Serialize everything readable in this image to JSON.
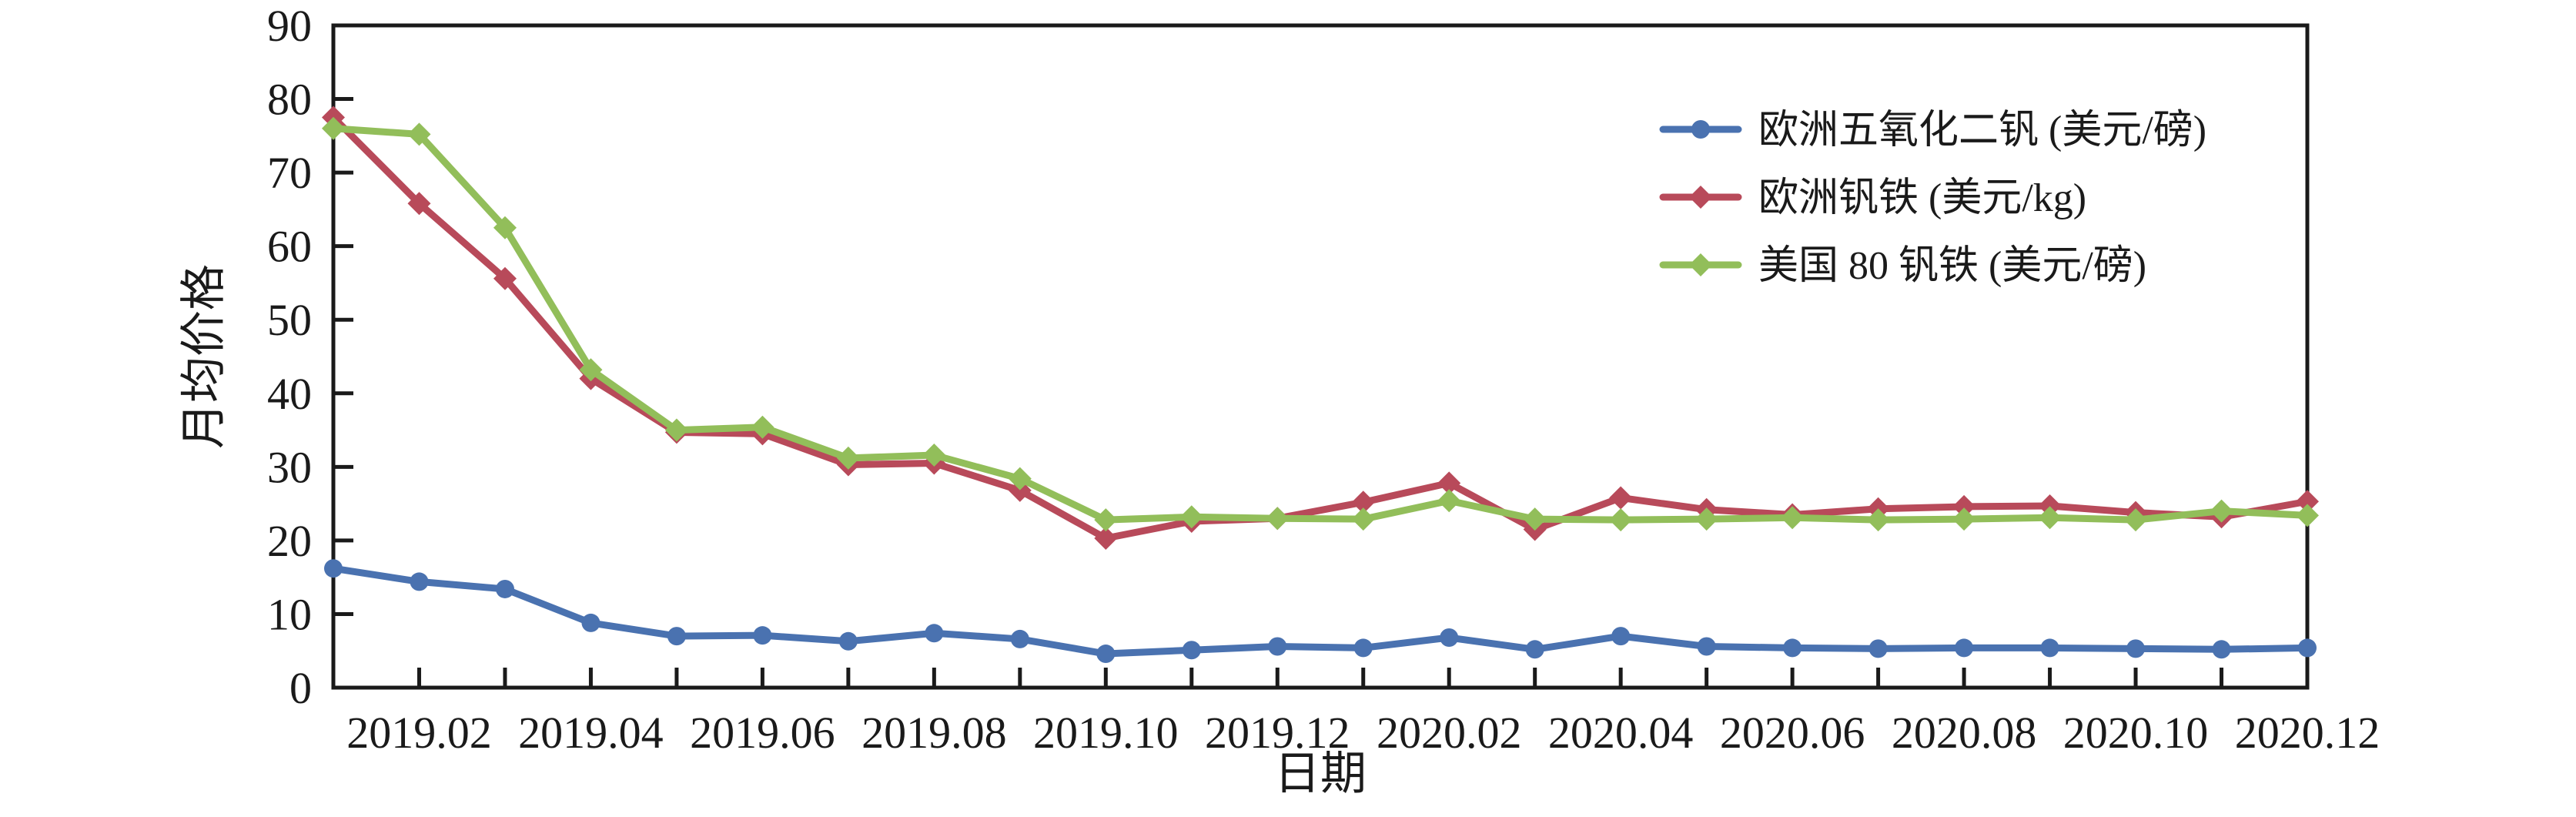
{
  "chart_data": {
    "type": "line",
    "title": "",
    "xlabel": "日期",
    "ylabel": "月均价格",
    "ylim": [
      0,
      90
    ],
    "ytick_step": 10,
    "ytick_labels": [
      "0",
      "10",
      "20",
      "30",
      "40",
      "50",
      "60",
      "70",
      "80",
      "90"
    ],
    "grid": false,
    "legend_position": "upper right",
    "x": [
      "2019.01",
      "2019.02",
      "2019.03",
      "2019.04",
      "2019.05",
      "2019.06",
      "2019.07",
      "2019.08",
      "2019.09",
      "2019.10",
      "2019.11",
      "2019.12",
      "2020.01",
      "2020.02",
      "2020.03",
      "2020.04",
      "2020.05",
      "2020.06",
      "2020.07",
      "2020.08",
      "2020.09",
      "2020.10",
      "2020.11",
      "2020.12"
    ],
    "x_tick_labels_shown": [
      "2019.02",
      "2019.04",
      "2019.06",
      "2019.08",
      "2019.10",
      "2019.12",
      "2020.02",
      "2020.04",
      "2020.06",
      "2020.08",
      "2020.10",
      "2020.12"
    ],
    "series": [
      {
        "name": "欧洲五氧化二钒 (美元/磅)",
        "color": "#4a72b0",
        "marker": "circle",
        "values": [
          16.2,
          14.4,
          13.4,
          8.8,
          7.0,
          7.1,
          6.3,
          7.4,
          6.6,
          4.6,
          5.1,
          5.6,
          5.4,
          6.8,
          5.2,
          7.0,
          5.6,
          5.4,
          5.3,
          5.4,
          5.4,
          5.3,
          5.2,
          5.4
        ]
      },
      {
        "name": "欧洲钒铁 (美元/kg)",
        "color": "#b84a5a",
        "marker": "diamond",
        "values": [
          77.5,
          65.8,
          55.6,
          42.0,
          34.7,
          34.5,
          30.3,
          30.5,
          26.8,
          20.3,
          22.6,
          23.0,
          25.2,
          27.8,
          21.5,
          25.8,
          24.2,
          23.5,
          24.3,
          24.6,
          24.7,
          23.8,
          23.2,
          25.3
        ]
      },
      {
        "name": "美国 80 钒铁 (美元/磅)",
        "color": "#92be5a",
        "marker": "diamond",
        "values": [
          76.0,
          75.2,
          62.5,
          43.2,
          35.0,
          35.4,
          31.2,
          31.6,
          28.4,
          22.8,
          23.2,
          23.0,
          22.9,
          25.4,
          22.9,
          22.8,
          22.9,
          23.1,
          22.8,
          22.9,
          23.1,
          22.8,
          24.0,
          23.4
        ]
      }
    ],
    "axis_color": "#1a1a1a"
  },
  "layout_note": "line chart of monthly average vanadium prices 2019.01-2020.12"
}
